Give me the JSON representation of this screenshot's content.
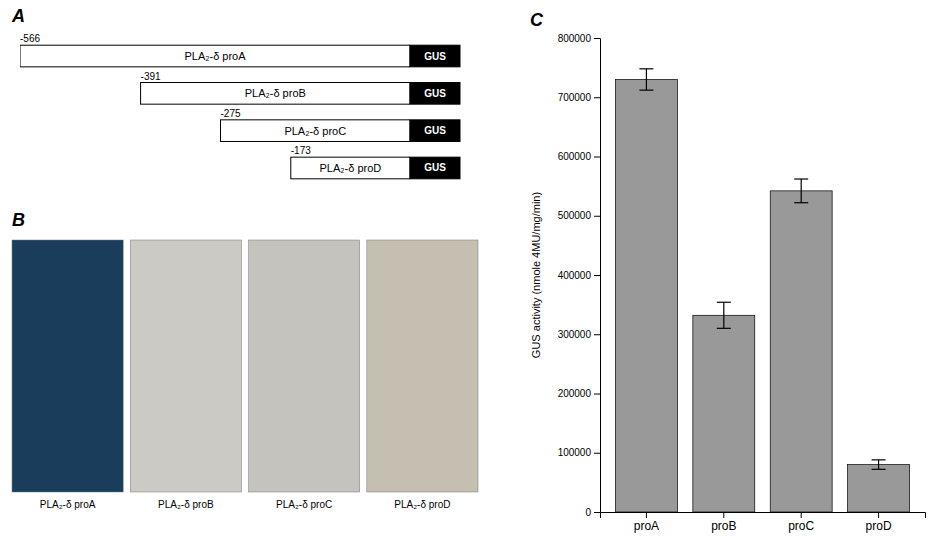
{
  "chart_data": [
    {
      "type": "bar",
      "orientation": "horizontal",
      "title": "A",
      "categories": [
        "PLA₂-δ proA",
        "PLA₂-δ proB",
        "PLA₂-δ proC",
        "PLA₂-δ proD"
      ],
      "values": [
        -566,
        -391,
        -275,
        -173
      ],
      "xlim": [
        -566,
        0
      ],
      "data_labels": true,
      "tick_labels": false,
      "annotations": [
        "GUS"
      ]
    },
    {
      "type": "image",
      "title": "B",
      "categories": [
        "PLA₂-δ proA",
        "PLA₂-δ proB",
        "PLA₂-δ proC",
        "PLA₂-δ proD"
      ],
      "colors": [
        "#1a3d5c",
        "#cccac4",
        "#c5c3be",
        "#c4bfb0"
      ]
    },
    {
      "type": "bar",
      "title": "C",
      "categories": [
        "proA",
        "proB",
        "proC",
        "proD"
      ],
      "values": [
        730000,
        332000,
        542000,
        80000
      ],
      "errors": [
        18000,
        22000,
        20000,
        8000
      ],
      "color": "#999999",
      "ylabel": "GUS activity (nmole 4MU/mg/min)",
      "ylim": [
        0,
        800000
      ],
      "yticks": [
        0,
        100000,
        200000,
        300000,
        400000,
        500000,
        600000,
        700000,
        800000
      ]
    }
  ]
}
